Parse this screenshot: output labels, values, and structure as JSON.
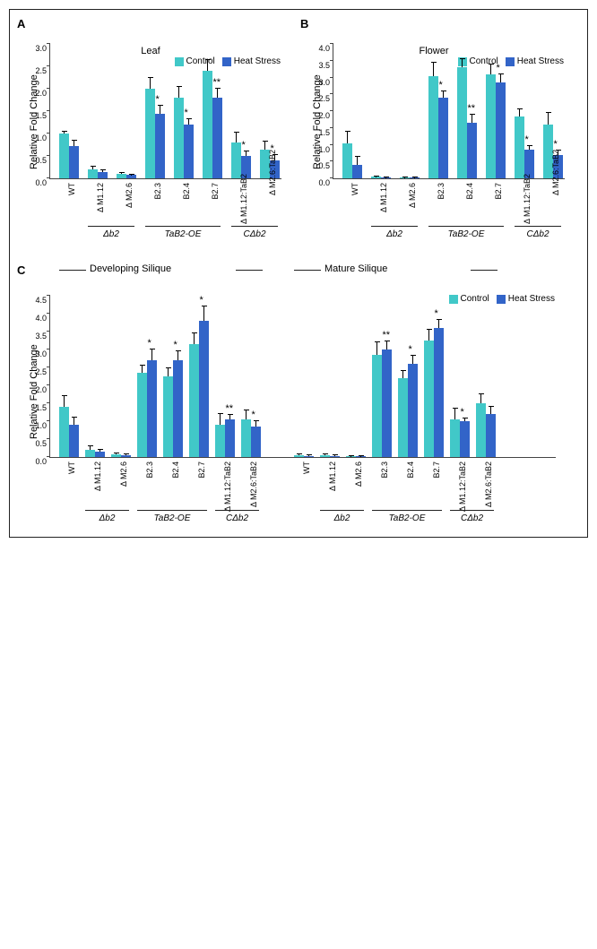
{
  "colors": {
    "control": "#41c8c8",
    "heat": "#3264c8",
    "err": "#000000"
  },
  "legend": {
    "control": "Control",
    "heat": "Heat Stress"
  },
  "ylabel": "Relative Fold Change",
  "categories": [
    "WT",
    "Δ M1.12",
    "Δ M2.6",
    "B2.3",
    "B2.4",
    "B2.7",
    "Δ M1.12:TaB2",
    "Δ M2.6:TaB2"
  ],
  "group_labels": {
    "db2": "Δb2",
    "tab2": "TaB2-OE",
    "cdb2": "CΔb2"
  },
  "panelA": {
    "label": "A",
    "title": "Leaf",
    "ymax": 3.0,
    "ystep": 0.5,
    "control": [
      1.0,
      0.2,
      0.1,
      2.0,
      1.8,
      2.4,
      0.8,
      0.65
    ],
    "heat": [
      0.72,
      0.15,
      0.08,
      1.45,
      1.2,
      1.8,
      0.5,
      0.4
    ],
    "err_c": [
      0.05,
      0.06,
      0.02,
      0.25,
      0.25,
      0.25,
      0.22,
      0.18
    ],
    "err_h": [
      0.12,
      0.04,
      0.01,
      0.18,
      0.12,
      0.2,
      0.1,
      0.12
    ],
    "sig": [
      "",
      "",
      "",
      "*",
      "*",
      "**",
      "*",
      "*"
    ]
  },
  "panelB": {
    "label": "B",
    "title": "Flower",
    "ymax": 4.0,
    "ystep": 0.5,
    "control": [
      1.05,
      0.05,
      0.02,
      3.05,
      3.3,
      3.1,
      1.85,
      1.6
    ],
    "heat": [
      0.4,
      0.02,
      0.02,
      2.4,
      1.65,
      2.85,
      0.85,
      0.7
    ],
    "err_c": [
      0.35,
      0.01,
      0.01,
      0.4,
      0.25,
      0.3,
      0.2,
      0.35
    ],
    "err_h": [
      0.25,
      0.01,
      0.01,
      0.18,
      0.25,
      0.25,
      0.12,
      0.12
    ],
    "sig": [
      "",
      "",
      "",
      "*",
      "**",
      "*",
      "*",
      "*"
    ]
  },
  "panelC": {
    "label": "C",
    "sub1": "Developing Silique",
    "sub2": "Mature Silique",
    "ymax": 4.5,
    "ystep": 0.5,
    "left": {
      "control": [
        1.4,
        0.2,
        0.08,
        2.35,
        2.25,
        3.15,
        0.9,
        1.05
      ],
      "heat": [
        0.9,
        0.15,
        0.05,
        2.7,
        2.7,
        3.8,
        1.05,
        0.85
      ],
      "err_c": [
        0.3,
        0.1,
        0.02,
        0.2,
        0.22,
        0.3,
        0.3,
        0.25
      ],
      "err_h": [
        0.2,
        0.05,
        0.02,
        0.3,
        0.25,
        0.4,
        0.12,
        0.15
      ],
      "sig": [
        "",
        "",
        "",
        "*",
        "*",
        "*",
        "**",
        "*"
      ]
    },
    "right": {
      "control": [
        0.05,
        0.05,
        0.02,
        2.85,
        2.2,
        3.25,
        1.05,
        1.5
      ],
      "heat": [
        0.03,
        0.03,
        0.02,
        3.0,
        2.6,
        3.6,
        1.0,
        1.2
      ],
      "err_c": [
        0.02,
        0.02,
        0.01,
        0.35,
        0.2,
        0.3,
        0.3,
        0.25
      ],
      "err_h": [
        0.02,
        0.01,
        0.01,
        0.22,
        0.22,
        0.22,
        0.08,
        0.2
      ],
      "sig": [
        "",
        "",
        "",
        "**",
        "*",
        "*",
        "*",
        ""
      ]
    }
  }
}
